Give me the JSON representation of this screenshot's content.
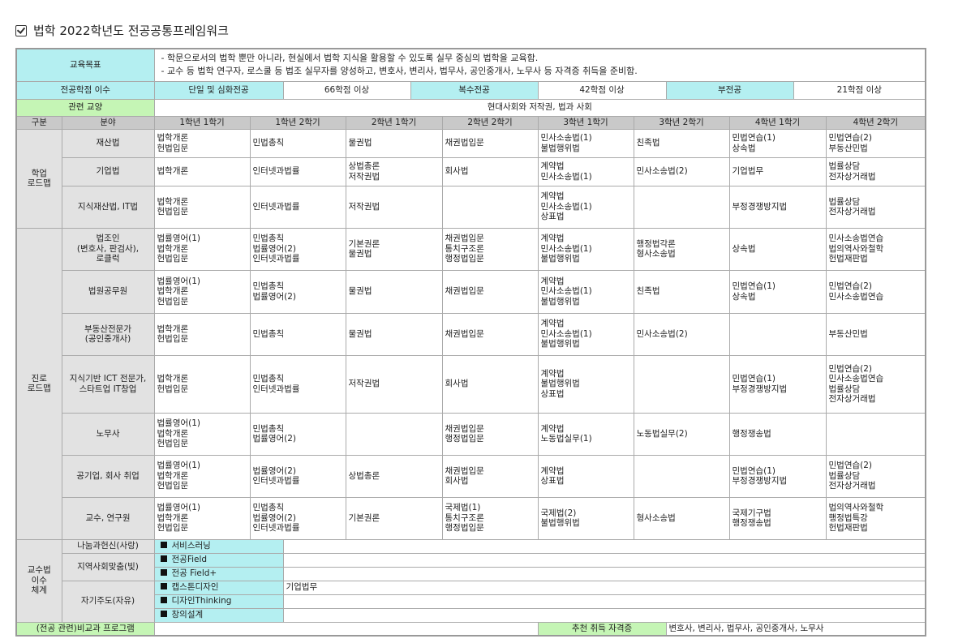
{
  "title": "법학 2022학년도 전공공통프레임워크",
  "goal": {
    "label": "교육목표",
    "lines": [
      "- 학문으로서의 법학 뿐만 아니라, 현실에서 법학 지식을 활용할 수 있도록 실무 중심의 법학을 교육함.",
      "- 교수 등 법학 연구자, 로스쿨 등 법조 실무자를 양성하고, 변호사, 변리사, 법무사, 공인중개사, 노무사 등 자격증 취득을 준비함."
    ]
  },
  "credits": {
    "label": "전공학점 이수",
    "items": [
      {
        "type": "단일 및 심화전공",
        "value": "66학점 이상"
      },
      {
        "type": "복수전공",
        "value": "42학점 이상"
      },
      {
        "type": "부전공",
        "value": "21학점 이상"
      }
    ]
  },
  "liberal": {
    "label": "관련 교양",
    "value": "현대사회와 저작권, 법과 사회"
  },
  "header": {
    "category": "구분",
    "field": "분야",
    "semesters": [
      "1학년 1학기",
      "1학년 2학기",
      "2학년 1학기",
      "2학년 2학기",
      "3학년 1학기",
      "3학년 2학기",
      "4학년 1학기",
      "4학년 2학기"
    ]
  },
  "groups": [
    {
      "label": "학업\n로드맵",
      "rows": [
        {
          "field": "재산법",
          "cells": [
            "법학개론\n헌법입문",
            "민법총칙",
            "물권법",
            "채권법입문",
            "민사소송법(1)\n불법행위법",
            "친족법",
            "민법연습(1)\n상속법",
            "민법연습(2)\n부동산민법"
          ]
        },
        {
          "field": "기업법",
          "cells": [
            "법학개론",
            "인터넷과법률",
            "상법총론\n저작권법",
            "회사법",
            "계약법\n민사소송법(1)",
            "민사소송법(2)",
            "기업법무",
            "법률상담\n전자상거래법"
          ]
        },
        {
          "field": "지식재산법, IT법",
          "cells": [
            "법학개론\n헌법입문",
            "인터넷과법률",
            "저작권법",
            "",
            "계약법\n민사소송법(1)\n상표법",
            "",
            "부정경쟁방지법",
            "법률상담\n전자상거래법"
          ]
        }
      ]
    },
    {
      "label": "진로\n로드맵",
      "rows": [
        {
          "field": "법조인\n(변호사, 판검사),\n로클럭",
          "cells": [
            "법률영어(1)\n법학개론\n헌법입문",
            "민법총칙\n법률영어(2)\n인터넷과법률",
            "기본권론\n물권법",
            "채권법입문\n통치구조론\n행정법입문",
            "계약법\n민사소송법(1)\n불법행위법",
            "행정법각론\n형사소송법",
            "상속법",
            "민사소송법연습\n법의역사와철학\n헌법재판법"
          ]
        },
        {
          "field": "법원공무원",
          "cells": [
            "법률영어(1)\n법학개론\n헌법입문",
            "민법총칙\n법률영어(2)",
            "물권법",
            "채권법입문",
            "계약법\n민사소송법(1)\n불법행위법",
            "친족법",
            "민법연습(1)\n상속법",
            "민법연습(2)\n민사소송법연습"
          ]
        },
        {
          "field": "부동산전문가\n(공인중개사)",
          "cells": [
            "법학개론\n헌법입문",
            "민법총칙",
            "물권법",
            "채권법입문",
            "계약법\n민사소송법(1)\n불법행위법",
            "민사소송법(2)",
            "",
            "부동산민법"
          ]
        },
        {
          "field": "지식기반 ICT 전문가,\n스타트업 IT창업",
          "cells": [
            "법학개론\n헌법입문",
            "민법총칙\n인터넷과법률",
            "저작권법",
            "회사법",
            "계약법\n불법행위법\n상표법",
            "",
            "민법연습(1)\n부정경쟁방지법",
            "민법연습(2)\n민사소송법연습\n법률상담\n전자상거래법"
          ]
        },
        {
          "field": "노무사",
          "cells": [
            "법률영어(1)\n법학개론\n헌법입문",
            "민법총칙\n법률영어(2)",
            "",
            "채권법입문\n행정법입문",
            "계약법\n노동법실무(1)",
            "노동법실무(2)",
            "행정쟁송법",
            ""
          ]
        },
        {
          "field": "공기업, 회사 취업",
          "cells": [
            "법률영어(1)\n법학개론\n헌법입문",
            "법률영어(2)\n인터넷과법률",
            "상법총론",
            "채권법입문\n회사법",
            "계약법\n상표법",
            "",
            "민법연습(1)\n부정경쟁방지법",
            "민법연습(2)\n법률상담\n전자상거래법"
          ]
        },
        {
          "field": "교수, 연구원",
          "cells": [
            "법률영어(1)\n법학개론\n헌법입문",
            "민법총칙\n법률영어(2)\n인터넷과법률",
            "기본권론",
            "국제법(1)\n통치구조론\n행정법입문",
            "국제법(2)\n불법행위법",
            "형사소송법",
            "국제기구법\n행정쟁송법",
            "법의역사와철학\n행정법특강\n헌법재판법"
          ]
        }
      ]
    }
  ],
  "teaching": {
    "label": "교수법\n이수\n체계",
    "groups": [
      {
        "field": "나눔과헌신(사랑)",
        "items": [
          {
            "program": "서비스러닝",
            "value": ""
          }
        ]
      },
      {
        "field": "지역사회맞춤(빛)",
        "items": [
          {
            "program": "전공Field",
            "value": ""
          },
          {
            "program": "전공 Field+",
            "value": ""
          }
        ]
      },
      {
        "field": "자기주도(자유)",
        "items": [
          {
            "program": "캡스톤디자인",
            "value": "기업법무"
          },
          {
            "program": "디자인Thinking",
            "value": ""
          },
          {
            "program": "창의설계",
            "value": ""
          }
        ]
      }
    ]
  },
  "footer": {
    "label": "(전공 관련)비교과 프로그램",
    "value": "",
    "cert_label": "추천 취득 자격증",
    "cert_value": "변호사, 변리사, 법무사, 공인중개사, 노무사"
  },
  "colors": {
    "cyan": "#b4eff1",
    "green": "#c5f5b5",
    "header": "#c9c9c9",
    "label": "#e2e2e2"
  }
}
